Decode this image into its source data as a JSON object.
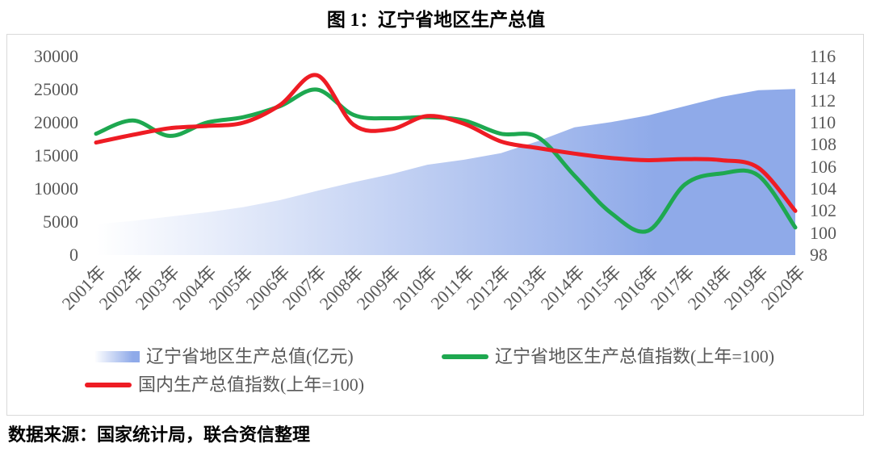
{
  "title": "图 1：辽宁省地区生产总值",
  "source": "数据来源：国家统计局，联合资信整理",
  "colors": {
    "area_gradient_start": "#FFFFFF",
    "area_gradient_end": "#8FAAE9",
    "green_line": "#1EA850",
    "red_line": "#EE1C24",
    "axis_text": "#595959",
    "frame_border": "#D9D9D9"
  },
  "chart_data": {
    "type": "combo",
    "title": "图 1：辽宁省地区生产总值",
    "categories": [
      "2001年",
      "2002年",
      "2003年",
      "2004年",
      "2005年",
      "2006年",
      "2007年",
      "2008年",
      "2009年",
      "2010年",
      "2011年",
      "2012年",
      "2013年",
      "2014年",
      "2015年",
      "2016年",
      "2017年",
      "2018年",
      "2019年",
      "2020年"
    ],
    "series": [
      {
        "name": "辽宁省地区生产总值(亿元)",
        "chart_type": "area",
        "axis": "left",
        "color_key": "area",
        "values": [
          4700,
          5150,
          5800,
          6450,
          7250,
          8300,
          9700,
          11000,
          12200,
          13650,
          14400,
          15400,
          17200,
          19300,
          20100,
          21100,
          22500,
          23900,
          24900,
          25100
        ]
      },
      {
        "name": "辽宁省地区生产总值指数(上年=100)",
        "chart_type": "line",
        "axis": "right",
        "color_key": "green",
        "values": [
          109.0,
          110.2,
          108.8,
          110.0,
          110.5,
          111.5,
          113.0,
          110.7,
          110.4,
          110.5,
          110.2,
          109.0,
          108.7,
          105.2,
          101.8,
          100.2,
          104.4,
          105.4,
          105.2,
          100.5
        ]
      },
      {
        "name": "国内生产总值指数(上年=100)",
        "chart_type": "line",
        "axis": "right",
        "color_key": "red",
        "values": [
          108.2,
          108.9,
          109.5,
          109.7,
          110.0,
          111.6,
          114.3,
          109.8,
          109.4,
          110.6,
          109.9,
          108.3,
          107.7,
          107.2,
          106.8,
          106.6,
          106.7,
          106.6,
          105.9,
          102.0
        ]
      }
    ],
    "left_axis": {
      "min": 0,
      "max": 30000,
      "step": 5000,
      "ticks": [
        0,
        5000,
        10000,
        15000,
        20000,
        25000,
        30000
      ]
    },
    "right_axis": {
      "min": 98,
      "max": 116,
      "step": 2,
      "ticks": [
        98,
        100,
        102,
        104,
        106,
        108,
        110,
        112,
        114,
        116
      ]
    },
    "grid": "off",
    "legend_position": "bottom"
  }
}
